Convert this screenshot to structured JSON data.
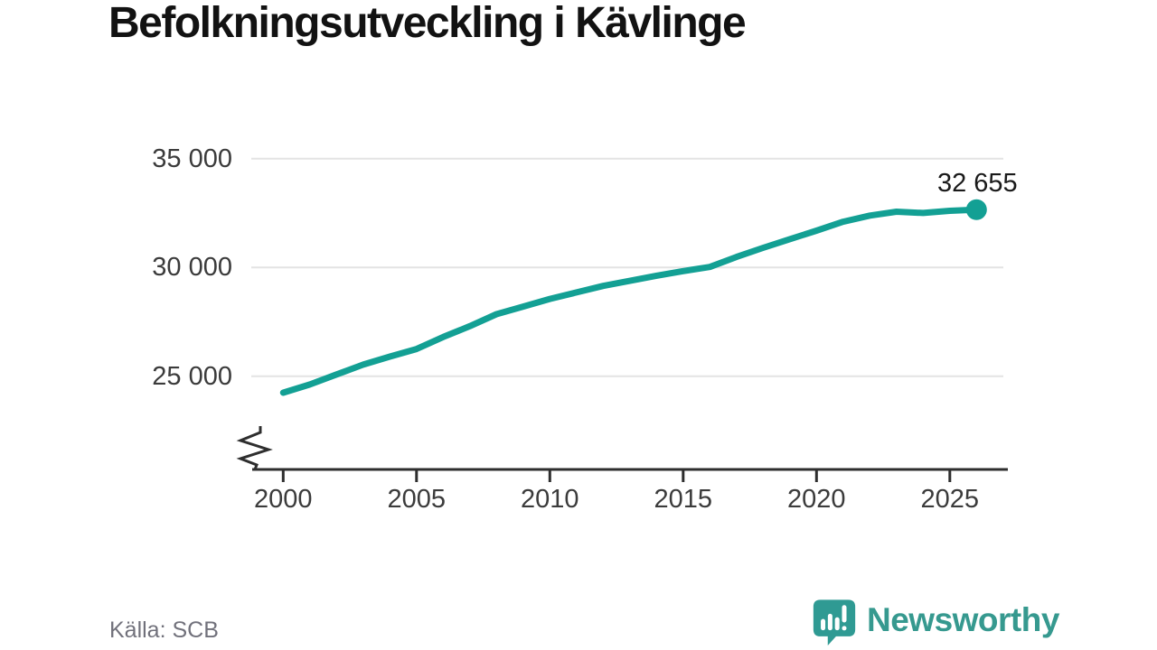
{
  "title": "Befolkningsutveckling i Kävlinge",
  "source_label": "Källa: SCB",
  "branding": {
    "name": "Newsworthy"
  },
  "colors": {
    "line": "#13a094",
    "dot": "#13a094",
    "grid": "#e4e4e4",
    "axis": "#2e2e2e",
    "tick_text": "#3b3b3b",
    "title_text": "#121212",
    "end_label_text": "#1a1a1a",
    "source_text": "#71717b",
    "logo": "#2f9a93",
    "logo_glyph": "#ffffff",
    "wordmark": "#36998f"
  },
  "chart_data": {
    "type": "line",
    "title": "Befolkningsutveckling i Kävlinge",
    "source": "Källa: SCB",
    "x": [
      2000,
      2001,
      2002,
      2003,
      2004,
      2005,
      2006,
      2007,
      2008,
      2009,
      2010,
      2011,
      2012,
      2013,
      2014,
      2015,
      2016,
      2017,
      2018,
      2019,
      2020,
      2021,
      2022,
      2023,
      2024,
      2025,
      2026
    ],
    "values": [
      24240,
      24620,
      25080,
      25530,
      25900,
      26250,
      26800,
      27300,
      27850,
      28200,
      28550,
      28850,
      29150,
      29380,
      29620,
      29830,
      30020,
      30480,
      30900,
      31300,
      31690,
      32100,
      32380,
      32560,
      32500,
      32600,
      32655
    ],
    "end_label": "32 655",
    "x_ticks": {
      "values": [
        2000,
        2005,
        2010,
        2015,
        2020,
        2025
      ],
      "labels": [
        "2000",
        "2005",
        "2010",
        "2015",
        "2020",
        "2025"
      ]
    },
    "y_ticks": {
      "values": [
        35000,
        30000,
        25000
      ],
      "labels": [
        "35 000",
        "30 000",
        "25 000"
      ]
    },
    "xlim": [
      1999,
      2027.2
    ],
    "ylim": [
      23800,
      35400
    ],
    "grid": "horizontal-only",
    "legend": "none",
    "axis_break": true
  }
}
